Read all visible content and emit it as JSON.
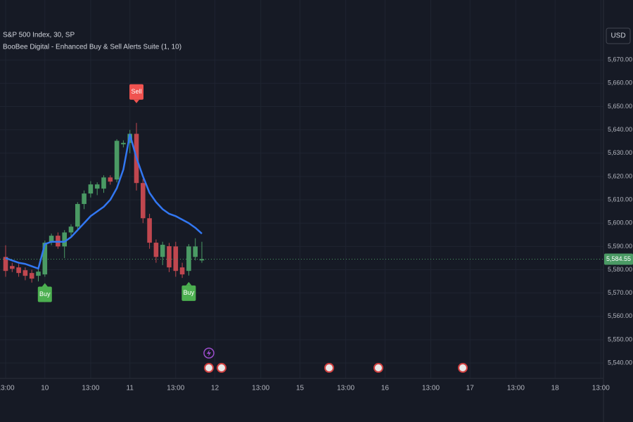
{
  "chart_data": {
    "type": "candlestick",
    "title": "S&P 500 Index, 30, SP",
    "subtitle": "BooBee Digital - Enhanced Buy & Sell Alerts Suite (1, 10)",
    "currency": "USD",
    "categories": [
      "13:00",
      null,
      null,
      null,
      null,
      null,
      "10",
      null,
      null,
      null,
      null,
      null,
      null,
      "13:00",
      null,
      null,
      null,
      null,
      null,
      "11",
      null,
      null,
      null,
      null,
      null,
      null,
      "13:00",
      null,
      null,
      null,
      null,
      null,
      "12",
      null,
      null,
      null,
      null,
      null,
      null,
      "13:00",
      null,
      null,
      null,
      null,
      null,
      "15",
      null,
      null,
      null,
      null,
      null,
      null,
      "13:00",
      null,
      null,
      null,
      null,
      null,
      "16",
      null,
      null,
      null,
      null,
      null,
      null,
      "13:00",
      null,
      null,
      null,
      null,
      null,
      "17",
      null,
      null,
      null,
      null,
      null,
      null,
      "13:00",
      null,
      null,
      null,
      null,
      null,
      "18",
      null,
      null,
      null,
      null,
      null,
      null,
      "13:00"
    ],
    "open": [
      5585.5,
      5581.6,
      5581,
      5579.8,
      5578.6,
      5577.4,
      5578,
      5591.6,
      5594.6,
      5590,
      5596,
      5598.5,
      5608.2,
      5612.7,
      5614.8,
      5614.8,
      5619.6,
      5618.7,
      5633.8,
      5634.4,
      5638.3,
      5617.2,
      5602.1,
      5591.6,
      5585.5,
      5590.1,
      5590,
      5581,
      5579.5,
      5585.5,
      5584,
      null,
      null,
      null,
      null,
      null,
      null,
      null,
      null,
      null,
      null,
      null,
      null,
      null,
      null,
      null,
      null,
      null,
      null,
      null,
      null,
      null,
      null,
      null,
      null,
      null,
      null,
      null,
      null,
      null,
      null,
      null,
      null,
      null,
      null,
      null,
      null,
      null,
      null,
      null,
      null,
      null,
      null,
      null,
      null,
      null,
      null,
      null,
      null,
      null,
      null,
      null,
      null,
      null,
      null,
      null,
      null,
      null,
      null,
      null,
      null,
      null
    ],
    "high": [
      5590.5,
      5583,
      5582.5,
      5581,
      5580,
      5580.5,
      5592.5,
      5595.5,
      5596,
      5597,
      5599.5,
      5609,
      5614,
      5618,
      5617.5,
      5620.5,
      5620.5,
      5636,
      5635.5,
      5640,
      5643,
      5619,
      5604,
      5593,
      5592,
      5591.5,
      5592,
      5583,
      5591,
      5593.5,
      5592,
      null,
      null,
      null,
      null,
      null,
      null,
      null,
      null,
      null,
      null,
      null,
      null,
      null,
      null,
      null,
      null,
      null,
      null,
      null,
      null,
      null,
      null,
      null,
      null,
      null,
      null,
      null,
      null,
      null,
      null,
      null,
      null,
      null,
      null,
      null,
      null,
      null,
      null,
      null,
      null,
      null,
      null,
      null,
      null,
      null,
      null,
      null,
      null,
      null,
      null,
      null,
      null,
      null,
      null,
      null,
      null,
      null,
      null,
      null,
      null,
      null
    ],
    "low": [
      5577,
      5579,
      5577,
      5575.5,
      5574.5,
      5575,
      5577,
      5590.5,
      5589,
      5585,
      5594.5,
      5597,
      5606,
      5611,
      5612,
      5613,
      5616.5,
      5617.5,
      5632.5,
      5630,
      5614,
      5600,
      5589,
      5583,
      5582,
      5579,
      5577,
      5576.5,
      5577.5,
      5584,
      5583,
      null,
      null,
      null,
      null,
      null,
      null,
      null,
      null,
      null,
      null,
      null,
      null,
      null,
      null,
      null,
      null,
      null,
      null,
      null,
      null,
      null,
      null,
      null,
      null,
      null,
      null,
      null,
      null,
      null,
      null,
      null,
      null,
      null,
      null,
      null,
      null,
      null,
      null,
      null,
      null,
      null,
      null,
      null,
      null,
      null,
      null,
      null,
      null,
      null,
      null,
      null,
      null,
      null,
      null,
      null,
      null,
      null,
      null,
      null,
      null,
      null
    ],
    "close": [
      5579.5,
      5580.4,
      5578.6,
      5577.4,
      5576.2,
      5579.2,
      5591.6,
      5594.6,
      5590,
      5596,
      5598.5,
      5608.2,
      5612.7,
      5616.6,
      5616.6,
      5619.6,
      5617.8,
      5635.3,
      5634.4,
      5638.3,
      5617.2,
      5602.1,
      5591.6,
      5585.5,
      5590.7,
      5581,
      5579.5,
      5578,
      5590,
      5590,
      5584.55,
      null,
      null,
      null,
      null,
      null,
      null,
      null,
      null,
      null,
      null,
      null,
      null,
      null,
      null,
      null,
      null,
      null,
      null,
      null,
      null,
      null,
      null,
      null,
      null,
      null,
      null,
      null,
      null,
      null,
      null,
      null,
      null,
      null,
      null,
      null,
      null,
      null,
      null,
      null,
      null,
      null,
      null,
      null,
      null,
      null,
      null,
      null,
      null,
      null,
      null,
      null,
      null,
      null,
      null,
      null,
      null,
      null,
      null,
      null,
      null,
      null
    ],
    "up_color": "#4a9a64",
    "down_color": "#c0474f",
    "line": {
      "color": "#3277f2",
      "values": [
        5585,
        5584,
        5583,
        5582.5,
        5581.5,
        5580.5,
        5591,
        5592,
        5592,
        5592,
        5594,
        5597,
        5600,
        5603,
        5605,
        5607,
        5610,
        5615,
        5623,
        5638,
        5628,
        5620,
        5613,
        5609,
        5606,
        5604,
        5603,
        5601.5,
        5600,
        5598,
        5595.5,
        null,
        null,
        null,
        null,
        null,
        null,
        null,
        null,
        null,
        null,
        null,
        null,
        null,
        null,
        null,
        null,
        null,
        null,
        null,
        null,
        null,
        null,
        null,
        null,
        null,
        null,
        null,
        null,
        null,
        null,
        null,
        null,
        null,
        null,
        null,
        null,
        null,
        null,
        null,
        null,
        null,
        null,
        null,
        null,
        null,
        null,
        null,
        null,
        null,
        null,
        null,
        null,
        null,
        null,
        null,
        null,
        null,
        null,
        null,
        null,
        null
      ]
    },
    "signals": [
      null,
      null,
      null,
      null,
      null,
      null,
      "Buy",
      null,
      null,
      null,
      null,
      null,
      null,
      null,
      null,
      null,
      null,
      null,
      null,
      null,
      "Sell",
      null,
      null,
      null,
      null,
      null,
      null,
      null,
      "Buy",
      null,
      null,
      null,
      null,
      null,
      null,
      null,
      null,
      null,
      null,
      null,
      null,
      null,
      null,
      null,
      null,
      null,
      null,
      null,
      null,
      null,
      null,
      null,
      null,
      null,
      null,
      null,
      null,
      null,
      null,
      null,
      null,
      null,
      null,
      null,
      null,
      null,
      null,
      null,
      null,
      null,
      null,
      null,
      null,
      null,
      null,
      null,
      null,
      null,
      null,
      null,
      null,
      null,
      null,
      null,
      null,
      null,
      null,
      null,
      null,
      null,
      null,
      null
    ],
    "buy_color": "#4caf50",
    "sell_color": "#f05350",
    "last_price": {
      "value": 5584.55,
      "label": "5,584.55"
    },
    "ylim": [
      5533.4,
      5695.7
    ],
    "yticks": [
      {
        "value": 5540,
        "label": "5,540.00"
      },
      {
        "value": 5550,
        "label": "5,550.00"
      },
      {
        "value": 5560,
        "label": "5,560.00"
      },
      {
        "value": 5570,
        "label": "5,570.00"
      },
      {
        "value": 5580,
        "label": "5,580.00"
      },
      {
        "value": 5590,
        "label": "5,590.00"
      },
      {
        "value": 5600,
        "label": "5,600.00"
      },
      {
        "value": 5610,
        "label": "5,610.00"
      },
      {
        "value": 5620,
        "label": "5,620.00"
      },
      {
        "value": 5630,
        "label": "5,630.00"
      },
      {
        "value": 5640,
        "label": "5,640.00"
      },
      {
        "value": 5650,
        "label": "5,650.00"
      },
      {
        "value": 5660,
        "label": "5,660.00"
      },
      {
        "value": 5670,
        "label": "5,670.00"
      }
    ],
    "grid": true
  }
}
